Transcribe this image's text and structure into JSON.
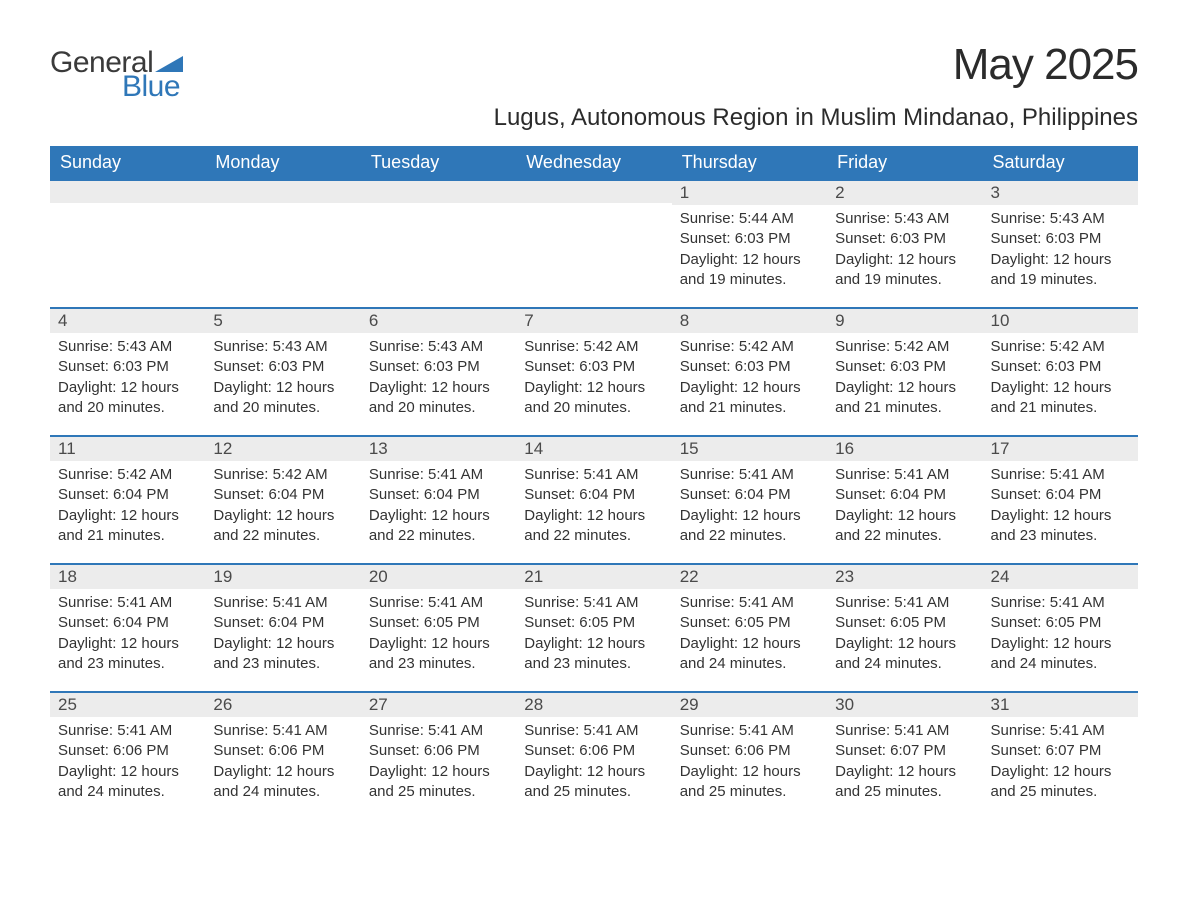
{
  "logo": {
    "text1": "General",
    "text2": "Blue",
    "triangle_color": "#2f77b8"
  },
  "colors": {
    "header_bg": "#2f77b8",
    "header_text": "#ffffff",
    "daynum_bg": "#ececec",
    "row_border": "#2f77b8",
    "body_text": "#333333",
    "page_bg": "#ffffff"
  },
  "title": "May 2025",
  "location": "Lugus, Autonomous Region in Muslim Mindanao, Philippines",
  "weekdays": [
    "Sunday",
    "Monday",
    "Tuesday",
    "Wednesday",
    "Thursday",
    "Friday",
    "Saturday"
  ],
  "weeks": [
    [
      null,
      null,
      null,
      null,
      {
        "n": "1",
        "sr": "Sunrise: 5:44 AM",
        "ss": "Sunset: 6:03 PM",
        "d1": "Daylight: 12 hours",
        "d2": "and 19 minutes."
      },
      {
        "n": "2",
        "sr": "Sunrise: 5:43 AM",
        "ss": "Sunset: 6:03 PM",
        "d1": "Daylight: 12 hours",
        "d2": "and 19 minutes."
      },
      {
        "n": "3",
        "sr": "Sunrise: 5:43 AM",
        "ss": "Sunset: 6:03 PM",
        "d1": "Daylight: 12 hours",
        "d2": "and 19 minutes."
      }
    ],
    [
      {
        "n": "4",
        "sr": "Sunrise: 5:43 AM",
        "ss": "Sunset: 6:03 PM",
        "d1": "Daylight: 12 hours",
        "d2": "and 20 minutes."
      },
      {
        "n": "5",
        "sr": "Sunrise: 5:43 AM",
        "ss": "Sunset: 6:03 PM",
        "d1": "Daylight: 12 hours",
        "d2": "and 20 minutes."
      },
      {
        "n": "6",
        "sr": "Sunrise: 5:43 AM",
        "ss": "Sunset: 6:03 PM",
        "d1": "Daylight: 12 hours",
        "d2": "and 20 minutes."
      },
      {
        "n": "7",
        "sr": "Sunrise: 5:42 AM",
        "ss": "Sunset: 6:03 PM",
        "d1": "Daylight: 12 hours",
        "d2": "and 20 minutes."
      },
      {
        "n": "8",
        "sr": "Sunrise: 5:42 AM",
        "ss": "Sunset: 6:03 PM",
        "d1": "Daylight: 12 hours",
        "d2": "and 21 minutes."
      },
      {
        "n": "9",
        "sr": "Sunrise: 5:42 AM",
        "ss": "Sunset: 6:03 PM",
        "d1": "Daylight: 12 hours",
        "d2": "and 21 minutes."
      },
      {
        "n": "10",
        "sr": "Sunrise: 5:42 AM",
        "ss": "Sunset: 6:03 PM",
        "d1": "Daylight: 12 hours",
        "d2": "and 21 minutes."
      }
    ],
    [
      {
        "n": "11",
        "sr": "Sunrise: 5:42 AM",
        "ss": "Sunset: 6:04 PM",
        "d1": "Daylight: 12 hours",
        "d2": "and 21 minutes."
      },
      {
        "n": "12",
        "sr": "Sunrise: 5:42 AM",
        "ss": "Sunset: 6:04 PM",
        "d1": "Daylight: 12 hours",
        "d2": "and 22 minutes."
      },
      {
        "n": "13",
        "sr": "Sunrise: 5:41 AM",
        "ss": "Sunset: 6:04 PM",
        "d1": "Daylight: 12 hours",
        "d2": "and 22 minutes."
      },
      {
        "n": "14",
        "sr": "Sunrise: 5:41 AM",
        "ss": "Sunset: 6:04 PM",
        "d1": "Daylight: 12 hours",
        "d2": "and 22 minutes."
      },
      {
        "n": "15",
        "sr": "Sunrise: 5:41 AM",
        "ss": "Sunset: 6:04 PM",
        "d1": "Daylight: 12 hours",
        "d2": "and 22 minutes."
      },
      {
        "n": "16",
        "sr": "Sunrise: 5:41 AM",
        "ss": "Sunset: 6:04 PM",
        "d1": "Daylight: 12 hours",
        "d2": "and 22 minutes."
      },
      {
        "n": "17",
        "sr": "Sunrise: 5:41 AM",
        "ss": "Sunset: 6:04 PM",
        "d1": "Daylight: 12 hours",
        "d2": "and 23 minutes."
      }
    ],
    [
      {
        "n": "18",
        "sr": "Sunrise: 5:41 AM",
        "ss": "Sunset: 6:04 PM",
        "d1": "Daylight: 12 hours",
        "d2": "and 23 minutes."
      },
      {
        "n": "19",
        "sr": "Sunrise: 5:41 AM",
        "ss": "Sunset: 6:04 PM",
        "d1": "Daylight: 12 hours",
        "d2": "and 23 minutes."
      },
      {
        "n": "20",
        "sr": "Sunrise: 5:41 AM",
        "ss": "Sunset: 6:05 PM",
        "d1": "Daylight: 12 hours",
        "d2": "and 23 minutes."
      },
      {
        "n": "21",
        "sr": "Sunrise: 5:41 AM",
        "ss": "Sunset: 6:05 PM",
        "d1": "Daylight: 12 hours",
        "d2": "and 23 minutes."
      },
      {
        "n": "22",
        "sr": "Sunrise: 5:41 AM",
        "ss": "Sunset: 6:05 PM",
        "d1": "Daylight: 12 hours",
        "d2": "and 24 minutes."
      },
      {
        "n": "23",
        "sr": "Sunrise: 5:41 AM",
        "ss": "Sunset: 6:05 PM",
        "d1": "Daylight: 12 hours",
        "d2": "and 24 minutes."
      },
      {
        "n": "24",
        "sr": "Sunrise: 5:41 AM",
        "ss": "Sunset: 6:05 PM",
        "d1": "Daylight: 12 hours",
        "d2": "and 24 minutes."
      }
    ],
    [
      {
        "n": "25",
        "sr": "Sunrise: 5:41 AM",
        "ss": "Sunset: 6:06 PM",
        "d1": "Daylight: 12 hours",
        "d2": "and 24 minutes."
      },
      {
        "n": "26",
        "sr": "Sunrise: 5:41 AM",
        "ss": "Sunset: 6:06 PM",
        "d1": "Daylight: 12 hours",
        "d2": "and 24 minutes."
      },
      {
        "n": "27",
        "sr": "Sunrise: 5:41 AM",
        "ss": "Sunset: 6:06 PM",
        "d1": "Daylight: 12 hours",
        "d2": "and 25 minutes."
      },
      {
        "n": "28",
        "sr": "Sunrise: 5:41 AM",
        "ss": "Sunset: 6:06 PM",
        "d1": "Daylight: 12 hours",
        "d2": "and 25 minutes."
      },
      {
        "n": "29",
        "sr": "Sunrise: 5:41 AM",
        "ss": "Sunset: 6:06 PM",
        "d1": "Daylight: 12 hours",
        "d2": "and 25 minutes."
      },
      {
        "n": "30",
        "sr": "Sunrise: 5:41 AM",
        "ss": "Sunset: 6:07 PM",
        "d1": "Daylight: 12 hours",
        "d2": "and 25 minutes."
      },
      {
        "n": "31",
        "sr": "Sunrise: 5:41 AM",
        "ss": "Sunset: 6:07 PM",
        "d1": "Daylight: 12 hours",
        "d2": "and 25 minutes."
      }
    ]
  ]
}
